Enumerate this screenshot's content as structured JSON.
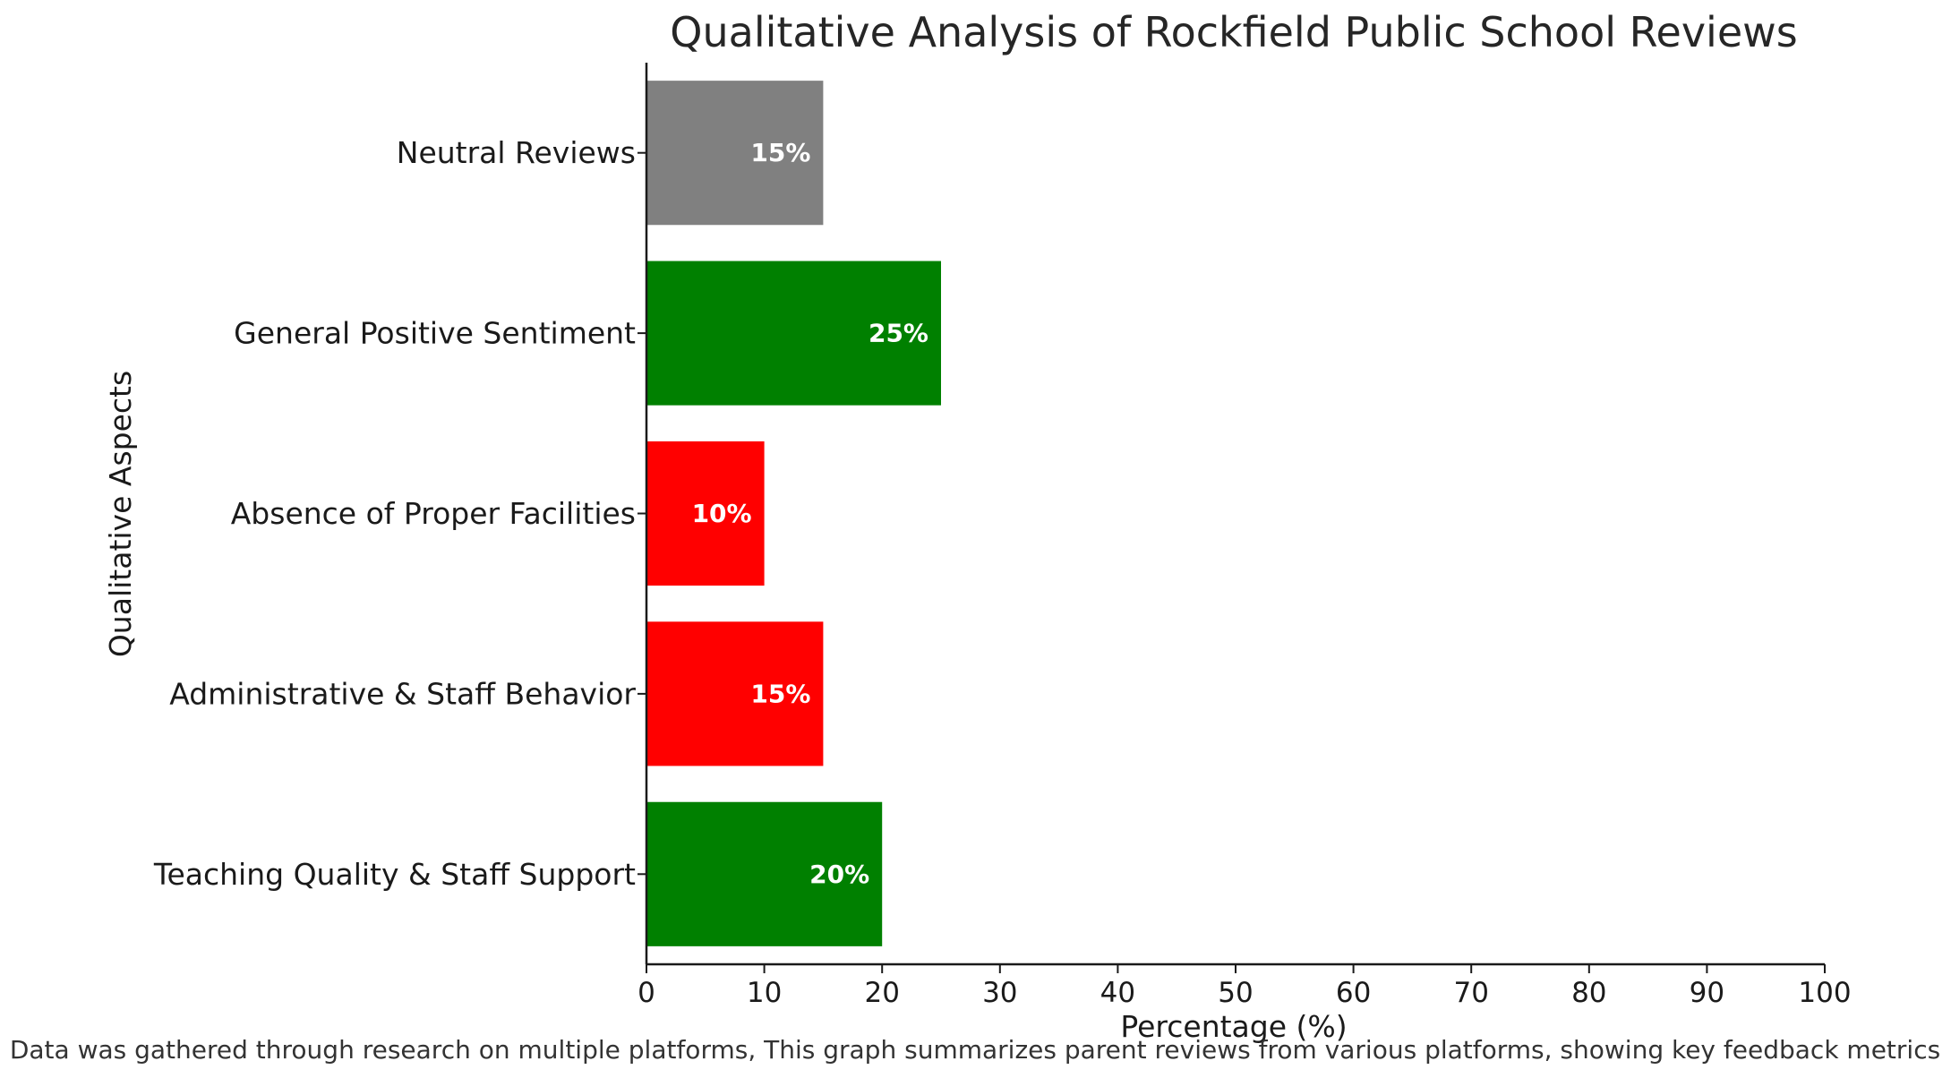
{
  "chart_data": {
    "type": "bar",
    "orientation": "horizontal",
    "title": "Qualitative Analysis of Rockfield Public School Reviews",
    "xlabel": "Percentage (%)",
    "ylabel": "Qualitative Aspects",
    "xlim": [
      0,
      100
    ],
    "xticks": [
      0,
      10,
      20,
      30,
      40,
      50,
      60,
      70,
      80,
      90,
      100
    ],
    "categories": [
      "Teaching Quality & Staff Support",
      "Administrative & Staff Behavior",
      "Absence of Proper Facilities",
      "General Positive Sentiment",
      "Neutral Reviews"
    ],
    "values": [
      20,
      15,
      10,
      25,
      15
    ],
    "value_labels": [
      "20%",
      "15%",
      "10%",
      "25%",
      "15%"
    ],
    "colors": [
      "#008000",
      "#ff0000",
      "#ff0000",
      "#008000",
      "#808080"
    ],
    "grid": false,
    "footnote": "Data was gathered through research on multiple platforms, This graph summarizes parent reviews from various platforms, showing key feedback metrics"
  }
}
